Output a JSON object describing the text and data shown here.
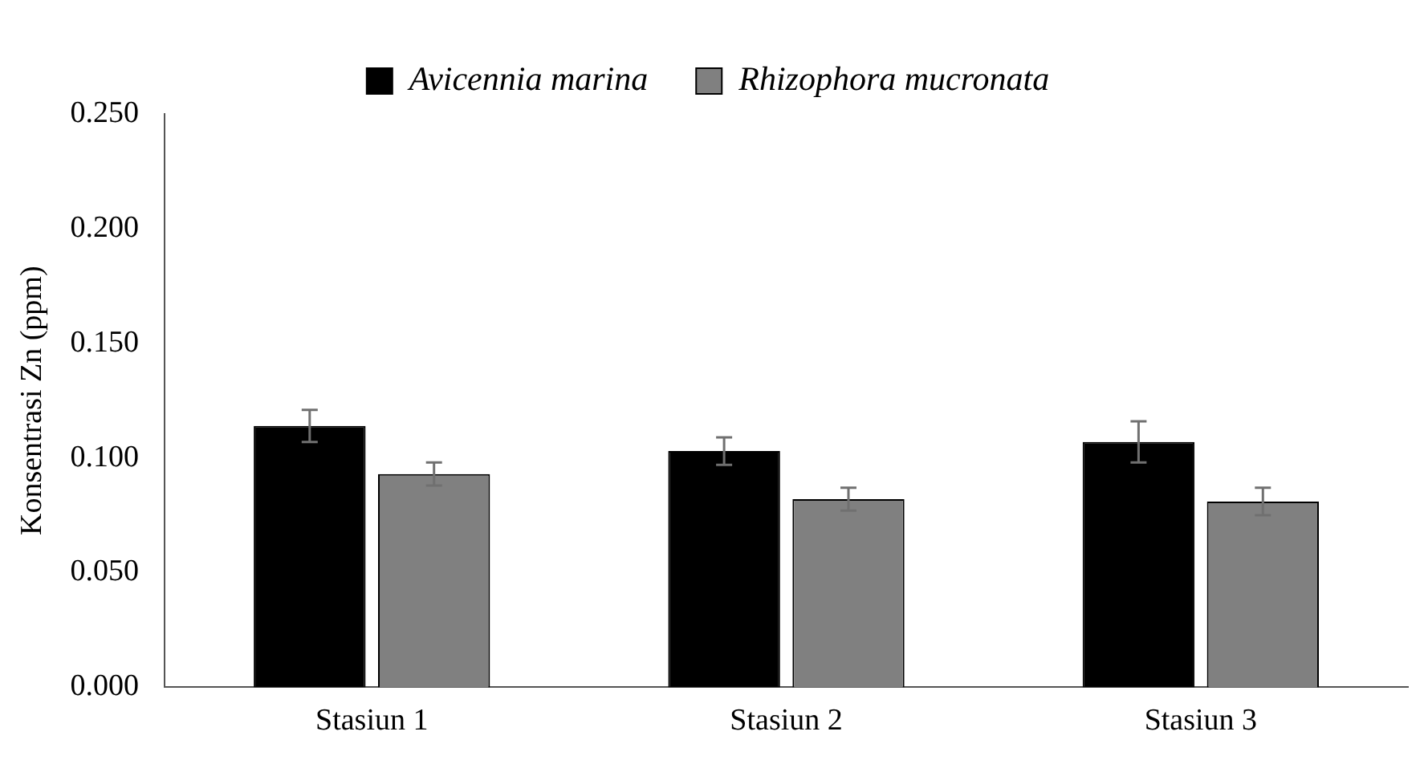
{
  "chart_data": {
    "type": "bar",
    "ylabel": "Konsentrasi Zn (ppm)",
    "categories": [
      "Stasiun 1",
      "Stasiun 2",
      "Stasiun 3"
    ],
    "series": [
      {
        "name": "Avicennia marina",
        "color": "#000000",
        "values": [
          0.114,
          0.103,
          0.107
        ],
        "errors": [
          0.007,
          0.006,
          0.009
        ]
      },
      {
        "name": "Rhizophora mucronata",
        "color": "#808080",
        "values": [
          0.093,
          0.082,
          0.081
        ],
        "errors": [
          0.005,
          0.005,
          0.006
        ]
      }
    ],
    "ylim": [
      0,
      0.25
    ],
    "yticks": [
      {
        "value": 0,
        "label": "0.000"
      },
      {
        "value": 0.05,
        "label": "0.050"
      },
      {
        "value": 0.1,
        "label": "0.100"
      },
      {
        "value": 0.15,
        "label": "0.150"
      },
      {
        "value": 0.2,
        "label": "0.200"
      },
      {
        "value": 0.25,
        "label": "0.250"
      }
    ],
    "grid": false,
    "legend": "top"
  }
}
